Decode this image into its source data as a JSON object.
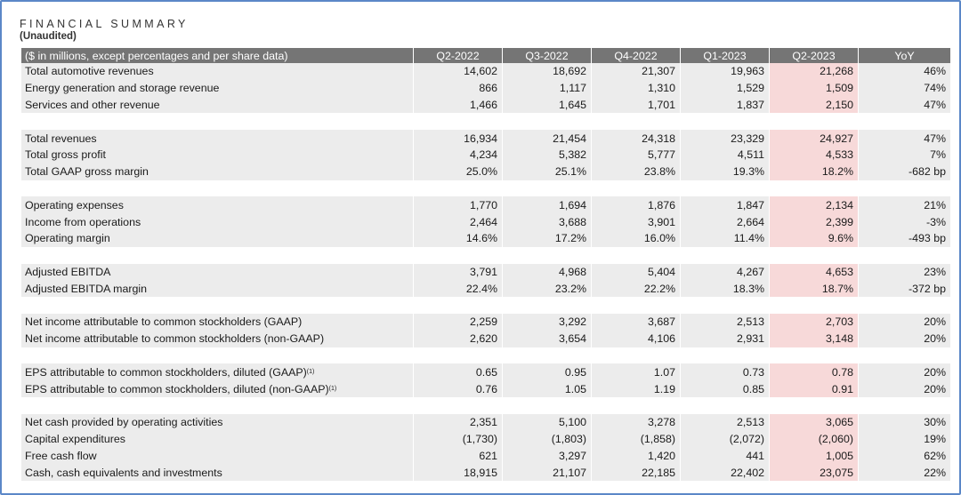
{
  "title": "FINANCIAL SUMMARY",
  "subtitle": "(Unaudited)",
  "table": {
    "header": {
      "label": "($ in millions, except percentages and per share data)",
      "columns": [
        "Q2-2022",
        "Q3-2022",
        "Q4-2022",
        "Q1-2023",
        "Q2-2023",
        "YoY"
      ]
    },
    "groups": [
      {
        "rows": [
          {
            "label": "Total automotive revenues",
            "sup": "",
            "values": [
              "14,602",
              "18,692",
              "21,307",
              "19,963",
              "21,268",
              "46%"
            ]
          },
          {
            "label": "Energy generation and storage revenue",
            "sup": "",
            "values": [
              "866",
              "1,117",
              "1,310",
              "1,529",
              "1,509",
              "74%"
            ]
          },
          {
            "label": "Services and other revenue",
            "sup": "",
            "values": [
              "1,466",
              "1,645",
              "1,701",
              "1,837",
              "2,150",
              "47%"
            ]
          }
        ]
      },
      {
        "rows": [
          {
            "label": "Total revenues",
            "sup": "",
            "values": [
              "16,934",
              "21,454",
              "24,318",
              "23,329",
              "24,927",
              "47%"
            ]
          },
          {
            "label": "Total gross profit",
            "sup": "",
            "values": [
              "4,234",
              "5,382",
              "5,777",
              "4,511",
              "4,533",
              "7%"
            ]
          },
          {
            "label": "Total GAAP gross margin",
            "sup": "",
            "values": [
              "25.0%",
              "25.1%",
              "23.8%",
              "19.3%",
              "18.2%",
              "-682 bp"
            ]
          }
        ]
      },
      {
        "rows": [
          {
            "label": "Operating expenses",
            "sup": "",
            "values": [
              "1,770",
              "1,694",
              "1,876",
              "1,847",
              "2,134",
              "21%"
            ]
          },
          {
            "label": "Income from operations",
            "sup": "",
            "values": [
              "2,464",
              "3,688",
              "3,901",
              "2,664",
              "2,399",
              "-3%"
            ]
          },
          {
            "label": "Operating margin",
            "sup": "",
            "values": [
              "14.6%",
              "17.2%",
              "16.0%",
              "11.4%",
              "9.6%",
              "-493 bp"
            ]
          }
        ]
      },
      {
        "rows": [
          {
            "label": "Adjusted EBITDA",
            "sup": "",
            "values": [
              "3,791",
              "4,968",
              "5,404",
              "4,267",
              "4,653",
              "23%"
            ]
          },
          {
            "label": "Adjusted EBITDA margin",
            "sup": "",
            "values": [
              "22.4%",
              "23.2%",
              "22.2%",
              "18.3%",
              "18.7%",
              "-372 bp"
            ]
          }
        ]
      },
      {
        "rows": [
          {
            "label": "Net income attributable to common stockholders (GAAP)",
            "sup": "",
            "values": [
              "2,259",
              "3,292",
              "3,687",
              "2,513",
              "2,703",
              "20%"
            ]
          },
          {
            "label": "Net income attributable to common stockholders (non-GAAP)",
            "sup": "",
            "values": [
              "2,620",
              "3,654",
              "4,106",
              "2,931",
              "3,148",
              "20%"
            ]
          }
        ]
      },
      {
        "rows": [
          {
            "label": "EPS attributable to common stockholders, diluted (GAAP)",
            "sup": "(1)",
            "values": [
              "0.65",
              "0.95",
              "1.07",
              "0.73",
              "0.78",
              "20%"
            ]
          },
          {
            "label": "EPS attributable to common stockholders, diluted (non-GAAP)",
            "sup": "(1)",
            "values": [
              "0.76",
              "1.05",
              "1.19",
              "0.85",
              "0.91",
              "20%"
            ]
          }
        ]
      },
      {
        "rows": [
          {
            "label": "Net cash provided by operating activities",
            "sup": "",
            "values": [
              "2,351",
              "5,100",
              "3,278",
              "2,513",
              "3,065",
              "30%"
            ]
          },
          {
            "label": "Capital expenditures",
            "sup": "",
            "values": [
              "(1,730)",
              "(1,803)",
              "(1,858)",
              "(2,072)",
              "(2,060)",
              "19%"
            ]
          },
          {
            "label": "Free cash flow",
            "sup": "",
            "values": [
              "621",
              "3,297",
              "1,420",
              "441",
              "1,005",
              "62%"
            ]
          },
          {
            "label": "Cash, cash equivalents and investments",
            "sup": "",
            "values": [
              "18,915",
              "21,107",
              "22,185",
              "22,402",
              "23,075",
              "22%"
            ]
          }
        ]
      }
    ],
    "highlight_column_index": 4,
    "colors": {
      "header_bg": "#757575",
      "row_shade": "#ececec",
      "highlight": "#f7d9d9",
      "frame": "#5b87c7"
    }
  }
}
